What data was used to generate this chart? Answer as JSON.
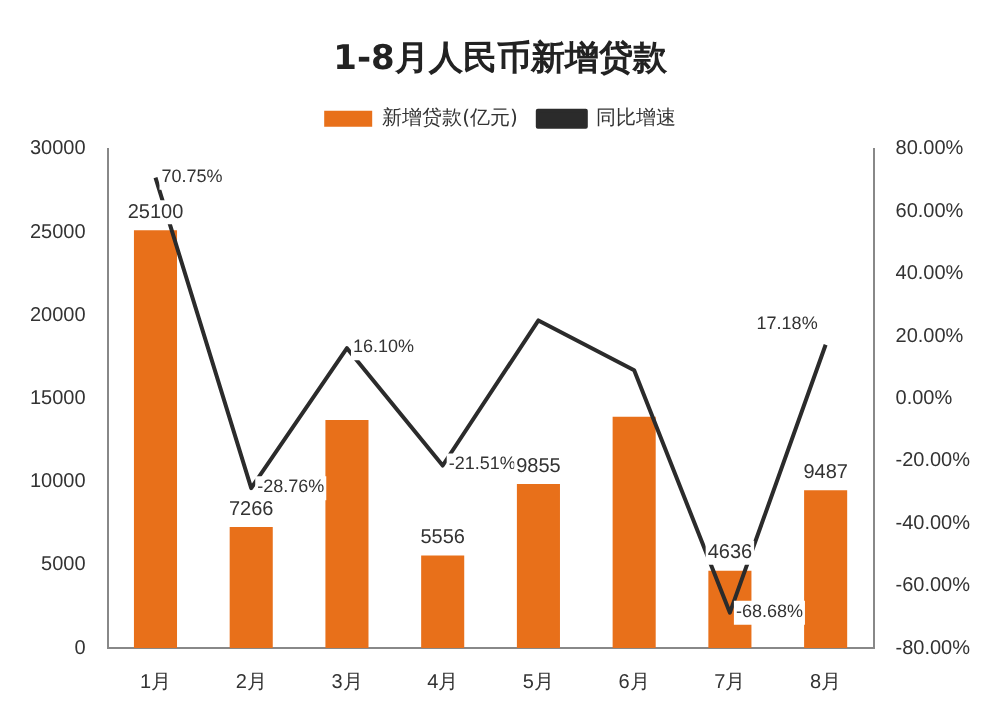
{
  "chart_data": {
    "type": "bar",
    "title": "1-8月人民币新增贷款",
    "categories": [
      "1月",
      "2月",
      "3月",
      "4月",
      "5月",
      "6月",
      "7月",
      "8月"
    ],
    "series": [
      {
        "name": "新增贷款(亿元)",
        "color": "#e8701a",
        "values": [
          25100,
          7266,
          13700,
          5556,
          9855,
          13900,
          4636,
          9487
        ],
        "value_labels": [
          "25100",
          "7266",
          null,
          "5556",
          "9855",
          null,
          "4636",
          "9487"
        ]
      },
      {
        "name": "同比增速",
        "type": "line",
        "axis": "y2",
        "color": "#2b2b2b",
        "values": [
          70.75,
          -28.76,
          16.1,
          -21.51,
          25,
          9,
          -68.68,
          17.18
        ],
        "value_labels": [
          "70.75%",
          "-28.76%",
          "16.10%",
          "-21.51%",
          null,
          null,
          "-68.68%",
          "17.18%"
        ]
      }
    ],
    "ylim": [
      0,
      30000
    ],
    "yticks": [
      0,
      5000,
      10000,
      15000,
      20000,
      25000,
      30000
    ],
    "y2lim": [
      -80,
      80
    ],
    "y2ticks": [
      {
        "value": -80,
        "label": "-80.00%"
      },
      {
        "value": -60,
        "label": "-60.00%"
      },
      {
        "value": -40,
        "label": "-40.00%"
      },
      {
        "value": -20,
        "label": "-20.00%"
      },
      {
        "value": 0,
        "label": "0.00%"
      },
      {
        "value": 20,
        "label": "20.00%"
      },
      {
        "value": 40,
        "label": "40.00%"
      },
      {
        "value": 60,
        "label": "60.00%"
      },
      {
        "value": 80,
        "label": "80.00%"
      }
    ],
    "grid": false,
    "legend": "top",
    "marker": "none",
    "line_style": "solid"
  }
}
